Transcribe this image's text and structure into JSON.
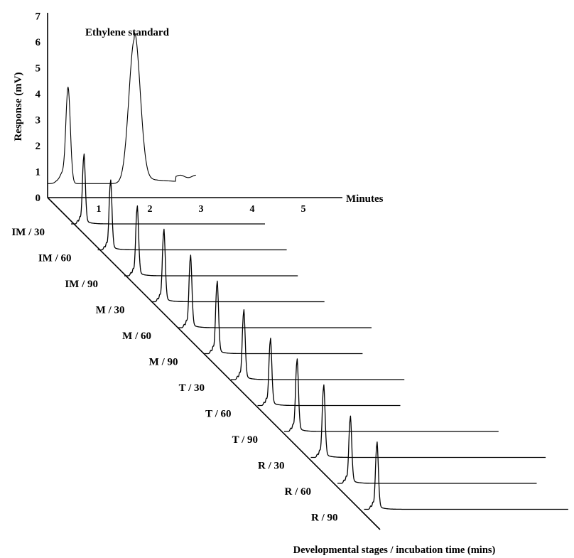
{
  "chart_data": {
    "type": "line",
    "title": "",
    "ylabel": "Response (mV)",
    "xlabel": "Minutes",
    "zlabel": "Developmental stages / incubation time (mins)",
    "y_ticks": [
      "0",
      "1",
      "2",
      "3",
      "4",
      "5",
      "6",
      "7"
    ],
    "x_ticks": [
      "1",
      "2",
      "3",
      "4",
      "5"
    ],
    "ylim": [
      0,
      7
    ],
    "xlim": [
      0,
      5
    ],
    "standard": {
      "label": "Ethylene standard",
      "peaks": [
        {
          "time": 0.4,
          "height": 4.0,
          "width": 0.08
        },
        {
          "time": 1.7,
          "height": 6.0,
          "width": 0.2
        }
      ],
      "end_time": 2.9
    },
    "series": [
      {
        "name": "IM / 30",
        "peak_time": 0.25,
        "peak_height": 5.0,
        "end_time": 3.8
      },
      {
        "name": "IM / 60",
        "peak_time": 0.25,
        "peak_height": 5.0,
        "end_time": 3.7
      },
      {
        "name": "IM / 90",
        "peak_time": 0.25,
        "peak_height": 5.0,
        "end_time": 3.4
      },
      {
        "name": "M / 30",
        "peak_time": 0.25,
        "peak_height": 5.2,
        "end_time": 3.4
      },
      {
        "name": "M / 60",
        "peak_time": 0.25,
        "peak_height": 5.2,
        "end_time": 3.8
      },
      {
        "name": "M / 90",
        "peak_time": 0.25,
        "peak_height": 5.2,
        "end_time": 3.1
      },
      {
        "name": "T / 30",
        "peak_time": 0.25,
        "peak_height": 5.0,
        "end_time": 3.4
      },
      {
        "name": "T / 60",
        "peak_time": 0.25,
        "peak_height": 4.8,
        "end_time": 2.8
      },
      {
        "name": "T / 90",
        "peak_time": 0.25,
        "peak_height": 5.2,
        "end_time": 4.2
      },
      {
        "name": "R / 30",
        "peak_time": 0.25,
        "peak_height": 5.2,
        "end_time": 4.6
      },
      {
        "name": "R / 60",
        "peak_time": 0.25,
        "peak_height": 4.8,
        "end_time": 3.9
      },
      {
        "name": "R / 90",
        "peak_time": 0.25,
        "peak_height": 4.8,
        "end_time": 4.0
      }
    ]
  }
}
